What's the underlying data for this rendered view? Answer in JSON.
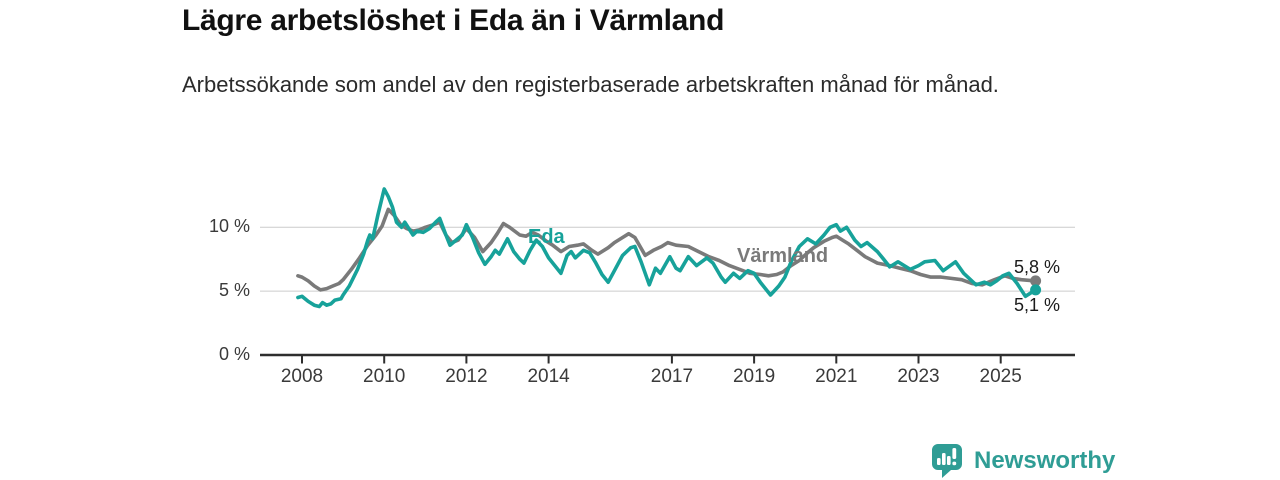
{
  "header": {
    "title": "Lägre arbetslöshet i Eda än i Värmland",
    "subtitle": "Arbetssökande som andel av den registerbaserade arbetskraften månad för månad."
  },
  "chart_data": {
    "type": "line",
    "title": "Lägre arbetslöshet i Eda än i Värmland",
    "xlabel": "",
    "ylabel": "",
    "unit": "%",
    "grid": "horizontal",
    "legend_position": "inline-labels",
    "xlim": [
      2007.6,
      2026.3
    ],
    "ylim": [
      0,
      13.5
    ],
    "y_ticks": [
      {
        "label": "10 %",
        "value": 10
      },
      {
        "label": "5 %",
        "value": 5
      },
      {
        "label": "0 %",
        "value": 0
      }
    ],
    "x_ticks": [
      {
        "label": "2008",
        "value": 2008
      },
      {
        "label": "2010",
        "value": 2010
      },
      {
        "label": "2012",
        "value": 2012
      },
      {
        "label": "2014",
        "value": 2014
      },
      {
        "label": "2017",
        "value": 2017
      },
      {
        "label": "2019",
        "value": 2019
      },
      {
        "label": "2021",
        "value": 2021
      },
      {
        "label": "2023",
        "value": 2023
      },
      {
        "label": "2025",
        "value": 2025
      }
    ],
    "series": [
      {
        "name": "Värmland",
        "color": "#7a7a7a",
        "end_label": "5,8 %",
        "last_value": 5.8,
        "points": [
          [
            2007.9,
            6.2
          ],
          [
            2008.0,
            6.1
          ],
          [
            2008.15,
            5.8
          ],
          [
            2008.3,
            5.4
          ],
          [
            2008.45,
            5.1
          ],
          [
            2008.6,
            5.2
          ],
          [
            2008.75,
            5.4
          ],
          [
            2008.9,
            5.6
          ],
          [
            2009.0,
            5.9
          ],
          [
            2009.2,
            6.7
          ],
          [
            2009.4,
            7.6
          ],
          [
            2009.6,
            8.6
          ],
          [
            2009.8,
            9.4
          ],
          [
            2009.95,
            10.1
          ],
          [
            2010.1,
            11.4
          ],
          [
            2010.25,
            10.9
          ],
          [
            2010.4,
            10.2
          ],
          [
            2010.55,
            9.9
          ],
          [
            2010.7,
            9.7
          ],
          [
            2010.85,
            9.8
          ],
          [
            2011.0,
            10.0
          ],
          [
            2011.2,
            10.2
          ],
          [
            2011.35,
            10.4
          ],
          [
            2011.5,
            9.4
          ],
          [
            2011.65,
            8.8
          ],
          [
            2011.8,
            9.0
          ],
          [
            2012.0,
            9.9
          ],
          [
            2012.2,
            9.2
          ],
          [
            2012.4,
            8.1
          ],
          [
            2012.6,
            8.8
          ],
          [
            2012.75,
            9.5
          ],
          [
            2012.9,
            10.3
          ],
          [
            2013.05,
            10.0
          ],
          [
            2013.3,
            9.4
          ],
          [
            2013.45,
            9.3
          ],
          [
            2013.6,
            9.6
          ],
          [
            2013.75,
            9.4
          ],
          [
            2013.95,
            8.9
          ],
          [
            2014.1,
            8.6
          ],
          [
            2014.3,
            8.1
          ],
          [
            2014.5,
            8.5
          ],
          [
            2014.7,
            8.6
          ],
          [
            2014.85,
            8.7
          ],
          [
            2015.05,
            8.2
          ],
          [
            2015.2,
            7.9
          ],
          [
            2015.45,
            8.4
          ],
          [
            2015.6,
            8.8
          ],
          [
            2015.8,
            9.2
          ],
          [
            2015.95,
            9.5
          ],
          [
            2016.1,
            9.2
          ],
          [
            2016.35,
            7.8
          ],
          [
            2016.55,
            8.2
          ],
          [
            2016.75,
            8.5
          ],
          [
            2016.9,
            8.8
          ],
          [
            2017.1,
            8.6
          ],
          [
            2017.4,
            8.5
          ],
          [
            2017.65,
            8.1
          ],
          [
            2017.9,
            7.7
          ],
          [
            2018.15,
            7.4
          ],
          [
            2018.4,
            7.0
          ],
          [
            2018.65,
            6.7
          ],
          [
            2018.9,
            6.4
          ],
          [
            2019.15,
            6.3
          ],
          [
            2019.35,
            6.2
          ],
          [
            2019.55,
            6.3
          ],
          [
            2019.7,
            6.5
          ],
          [
            2019.9,
            7.0
          ],
          [
            2020.1,
            7.4
          ],
          [
            2020.3,
            8.0
          ],
          [
            2020.45,
            8.4
          ],
          [
            2020.7,
            8.9
          ],
          [
            2020.9,
            9.2
          ],
          [
            2021.0,
            9.3
          ],
          [
            2021.15,
            9.0
          ],
          [
            2021.3,
            8.7
          ],
          [
            2021.5,
            8.2
          ],
          [
            2021.7,
            7.7
          ],
          [
            2022.0,
            7.2
          ],
          [
            2022.3,
            7.0
          ],
          [
            2022.55,
            6.8
          ],
          [
            2022.8,
            6.6
          ],
          [
            2023.05,
            6.3
          ],
          [
            2023.3,
            6.1
          ],
          [
            2023.55,
            6.1
          ],
          [
            2023.8,
            6.0
          ],
          [
            2024.05,
            5.9
          ],
          [
            2024.3,
            5.6
          ],
          [
            2024.55,
            5.5
          ],
          [
            2024.85,
            5.9
          ],
          [
            2025.1,
            6.2
          ],
          [
            2025.3,
            6.0
          ],
          [
            2025.5,
            5.9
          ],
          [
            2025.85,
            5.8
          ]
        ]
      },
      {
        "name": "Eda",
        "color": "#17a29a",
        "end_label": "5,1 %",
        "last_value": 5.1,
        "points": [
          [
            2007.9,
            4.5
          ],
          [
            2008.0,
            4.6
          ],
          [
            2008.15,
            4.2
          ],
          [
            2008.3,
            3.9
          ],
          [
            2008.42,
            3.8
          ],
          [
            2008.5,
            4.1
          ],
          [
            2008.6,
            3.9
          ],
          [
            2008.7,
            4.0
          ],
          [
            2008.8,
            4.3
          ],
          [
            2008.95,
            4.4
          ],
          [
            2009.0,
            4.7
          ],
          [
            2009.15,
            5.4
          ],
          [
            2009.35,
            6.7
          ],
          [
            2009.5,
            7.9
          ],
          [
            2009.6,
            9.0
          ],
          [
            2009.65,
            9.4
          ],
          [
            2009.72,
            9.1
          ],
          [
            2009.85,
            11.0
          ],
          [
            2010.0,
            13.0
          ],
          [
            2010.1,
            12.4
          ],
          [
            2010.2,
            11.6
          ],
          [
            2010.3,
            10.4
          ],
          [
            2010.42,
            10.0
          ],
          [
            2010.5,
            10.4
          ],
          [
            2010.6,
            9.9
          ],
          [
            2010.7,
            9.4
          ],
          [
            2010.8,
            9.7
          ],
          [
            2010.95,
            9.6
          ],
          [
            2011.1,
            9.9
          ],
          [
            2011.25,
            10.4
          ],
          [
            2011.35,
            10.7
          ],
          [
            2011.5,
            9.4
          ],
          [
            2011.6,
            8.6
          ],
          [
            2011.75,
            9.0
          ],
          [
            2011.9,
            9.4
          ],
          [
            2012.0,
            10.2
          ],
          [
            2012.15,
            9.2
          ],
          [
            2012.3,
            8.0
          ],
          [
            2012.45,
            7.1
          ],
          [
            2012.6,
            7.7
          ],
          [
            2012.7,
            8.2
          ],
          [
            2012.8,
            7.9
          ],
          [
            2012.9,
            8.5
          ],
          [
            2013.0,
            9.1
          ],
          [
            2013.15,
            8.1
          ],
          [
            2013.3,
            7.5
          ],
          [
            2013.4,
            7.2
          ],
          [
            2013.55,
            8.2
          ],
          [
            2013.7,
            9.0
          ],
          [
            2013.85,
            8.5
          ],
          [
            2014.0,
            7.6
          ],
          [
            2014.15,
            7.0
          ],
          [
            2014.3,
            6.4
          ],
          [
            2014.45,
            7.8
          ],
          [
            2014.55,
            8.1
          ],
          [
            2014.65,
            7.6
          ],
          [
            2014.85,
            8.2
          ],
          [
            2015.0,
            8.0
          ],
          [
            2015.15,
            7.2
          ],
          [
            2015.3,
            6.3
          ],
          [
            2015.45,
            5.7
          ],
          [
            2015.6,
            6.6
          ],
          [
            2015.8,
            7.8
          ],
          [
            2016.0,
            8.4
          ],
          [
            2016.1,
            8.5
          ],
          [
            2016.25,
            7.3
          ],
          [
            2016.45,
            5.5
          ],
          [
            2016.6,
            6.8
          ],
          [
            2016.72,
            6.4
          ],
          [
            2016.95,
            7.7
          ],
          [
            2017.1,
            6.8
          ],
          [
            2017.2,
            6.6
          ],
          [
            2017.4,
            7.7
          ],
          [
            2017.6,
            7.0
          ],
          [
            2017.85,
            7.6
          ],
          [
            2018.0,
            7.2
          ],
          [
            2018.2,
            6.1
          ],
          [
            2018.3,
            5.7
          ],
          [
            2018.5,
            6.4
          ],
          [
            2018.65,
            6.0
          ],
          [
            2018.85,
            6.6
          ],
          [
            2019.0,
            6.4
          ],
          [
            2019.15,
            5.7
          ],
          [
            2019.4,
            4.7
          ],
          [
            2019.6,
            5.4
          ],
          [
            2019.75,
            6.1
          ],
          [
            2019.9,
            7.3
          ],
          [
            2020.1,
            8.5
          ],
          [
            2020.3,
            9.1
          ],
          [
            2020.5,
            8.7
          ],
          [
            2020.7,
            9.4
          ],
          [
            2020.85,
            10.0
          ],
          [
            2021.0,
            10.2
          ],
          [
            2021.1,
            9.7
          ],
          [
            2021.25,
            10.0
          ],
          [
            2021.45,
            9.0
          ],
          [
            2021.6,
            8.5
          ],
          [
            2021.75,
            8.8
          ],
          [
            2022.0,
            8.1
          ],
          [
            2022.15,
            7.5
          ],
          [
            2022.3,
            6.9
          ],
          [
            2022.5,
            7.3
          ],
          [
            2022.8,
            6.7
          ],
          [
            2023.0,
            7.0
          ],
          [
            2023.15,
            7.3
          ],
          [
            2023.4,
            7.4
          ],
          [
            2023.6,
            6.6
          ],
          [
            2023.9,
            7.3
          ],
          [
            2024.1,
            6.4
          ],
          [
            2024.4,
            5.5
          ],
          [
            2024.6,
            5.7
          ],
          [
            2024.75,
            5.5
          ],
          [
            2024.9,
            5.8
          ],
          [
            2025.05,
            6.2
          ],
          [
            2025.2,
            6.4
          ],
          [
            2025.4,
            5.6
          ],
          [
            2025.6,
            4.6
          ],
          [
            2025.85,
            5.1
          ]
        ]
      }
    ]
  },
  "annotations": {
    "eda_label": "Eda",
    "varmland_label": "Värmland",
    "varmland_end_value": "5,8 %",
    "eda_end_value": "5,1 %"
  },
  "footer": {
    "brand": "Newsworthy"
  },
  "colors": {
    "eda": "#17a29a",
    "varmland": "#7a7a7a",
    "gridline": "#cccccc",
    "axis": "#2e2e2e",
    "logo": "#2f9d95"
  }
}
